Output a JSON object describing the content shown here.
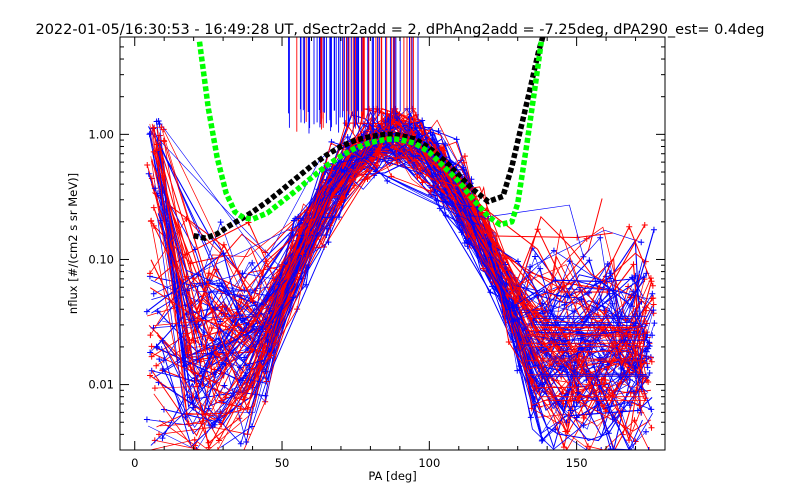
{
  "chart_data": {
    "type": "line",
    "title": "2022-01-05/16:30:53 - 16:49:28 UT, dSectr2add = 2, dPhAng2add = -7.25deg, dPA290_est=   0.4deg",
    "xlabel": "PA [deg]",
    "ylabel": "nflux [#/(cm2 s sr MeV)]",
    "xlim": [
      -5,
      180
    ],
    "ylim": [
      0.003,
      6
    ],
    "yscale": "log",
    "x_ticks": [
      0,
      50,
      100,
      150
    ],
    "x_tick_labels": [
      "0",
      "50",
      "100",
      "150"
    ],
    "y_ticks": [
      0.01,
      0.1,
      1.0
    ],
    "y_tick_labels": [
      "0.01",
      "0.10",
      "1.00"
    ],
    "grid": false,
    "colors": {
      "red": "#ff0000",
      "blue": "#0000ff",
      "black": "#000000",
      "green": "#00ff00"
    },
    "series": [
      {
        "color": "black",
        "style": "thick-dashed",
        "x": [
          20,
          24,
          28,
          32,
          36,
          40,
          45,
          50,
          55,
          60,
          65,
          70,
          75,
          80,
          85,
          88,
          90,
          95,
          100,
          105,
          110,
          115,
          120,
          125,
          128,
          131,
          134,
          137,
          140
        ],
        "y": [
          0.155,
          0.148,
          0.16,
          0.185,
          0.21,
          0.24,
          0.29,
          0.36,
          0.45,
          0.56,
          0.68,
          0.8,
          0.9,
          0.96,
          1.0,
          1.0,
          0.98,
          0.92,
          0.78,
          0.62,
          0.47,
          0.36,
          0.29,
          0.32,
          0.55,
          1.1,
          2.2,
          4.5,
          8.0
        ]
      },
      {
        "color": "green",
        "style": "thick-dashed",
        "x": [
          22,
          25,
          28,
          31,
          34,
          37,
          40,
          45,
          50,
          55,
          60,
          65,
          70,
          75,
          80,
          85,
          88,
          90,
          95,
          100,
          105,
          110,
          115,
          120,
          124,
          128,
          130,
          133,
          136,
          138
        ],
        "y": [
          5.5,
          1.6,
          0.65,
          0.34,
          0.24,
          0.215,
          0.21,
          0.235,
          0.29,
          0.36,
          0.45,
          0.56,
          0.67,
          0.78,
          0.86,
          0.91,
          0.92,
          0.91,
          0.85,
          0.72,
          0.55,
          0.42,
          0.3,
          0.22,
          0.19,
          0.2,
          0.28,
          0.8,
          2.5,
          5.5
        ]
      }
    ]
  }
}
